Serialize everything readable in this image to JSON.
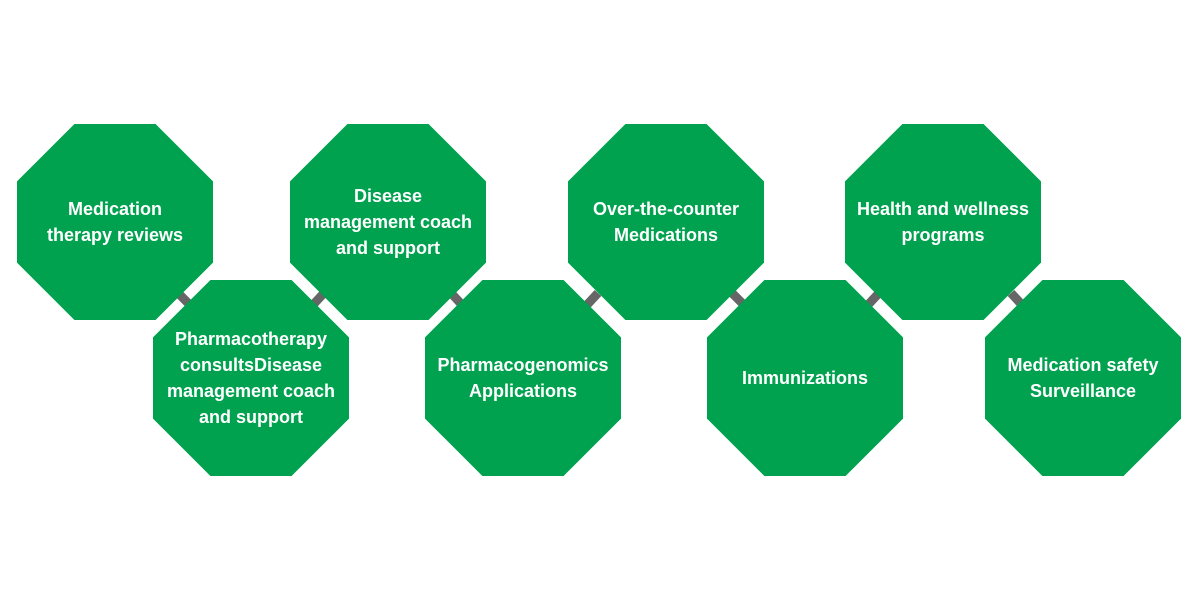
{
  "colors": {
    "node_fill": "#00a14f",
    "node_text": "#ffffff",
    "connector": "#666666",
    "background": "#ffffff"
  },
  "nodes": [
    {
      "label": "Medication\ntherapy reviews"
    },
    {
      "label": "Pharmacotherapy\nconsultsDisease\nmanagement coach\nand support"
    },
    {
      "label": "Disease\nmanagement coach\nand support"
    },
    {
      "label": "Pharmacogenomics\nApplications"
    },
    {
      "label": "Over-the-counter\nMedications"
    },
    {
      "label": "Immunizations"
    },
    {
      "label": "Health and wellness\nprograms"
    },
    {
      "label": "Medication safety\nSurveillance"
    }
  ]
}
